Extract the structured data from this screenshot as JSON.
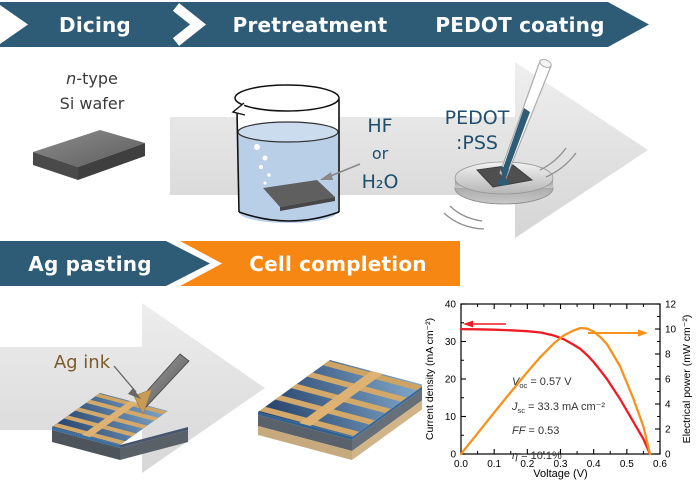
{
  "flow_row1": {
    "steps": [
      {
        "label": "Dicing"
      },
      {
        "label": "Pretreatment"
      },
      {
        "label": "PEDOT coating"
      }
    ]
  },
  "flow_row2": {
    "steps": [
      {
        "label": "Ag pasting"
      },
      {
        "label": "Cell completion"
      }
    ]
  },
  "labels": {
    "wafer_italic": "n",
    "wafer_rest": "-type",
    "wafer_line2": "Si wafer",
    "etch_line1": "HF",
    "etch_line2": "or",
    "etch_line3": "H₂O",
    "pedot_line1": "PEDOT",
    "pedot_line2": ":PSS",
    "ag_ink": "Ag ink"
  },
  "colors": {
    "teal_banner": "#2E5C77",
    "orange_banner": "#F68712",
    "flow_arrow_gray": "#E4E4E4",
    "beaker_liquid": "#B9CEE7",
    "label_blue": "#1F4E6E",
    "ag_ink_brown": "#7B5B2B",
    "curve_red": "#EE1C25",
    "curve_orange": "#F6921E"
  },
  "chart_data": {
    "type": "line",
    "xlabel": "Voltage (V)",
    "ylabel_left": "Current density (mA cm⁻²)",
    "ylabel_right": "Electrical power (mW cm⁻²)",
    "xlim": [
      0.0,
      0.6
    ],
    "ylim_left": [
      0,
      40
    ],
    "ylim_right": [
      0,
      12
    ],
    "xticks": [
      0.0,
      0.1,
      0.2,
      0.3,
      0.4,
      0.5,
      0.6
    ],
    "xtick_labels": [
      "0.0",
      "0.1",
      "0.2",
      "0.3",
      "0.4",
      "0.5",
      "0.6"
    ],
    "yticks_left": [
      0,
      10,
      20,
      30,
      40
    ],
    "ytick_labels_left": [
      "0",
      "10",
      "20",
      "30",
      "40"
    ],
    "yticks_right": [
      0,
      2,
      4,
      6,
      8,
      10,
      12
    ],
    "ytick_labels_right": [
      "0",
      "2",
      "4",
      "6",
      "8",
      "10",
      "12"
    ],
    "grid": false,
    "series": [
      {
        "name": "Current density",
        "axis": "left",
        "color": "#EE1C25",
        "points": [
          [
            0,
            33.3
          ],
          [
            0.05,
            33.25
          ],
          [
            0.1,
            33.15
          ],
          [
            0.15,
            33.0
          ],
          [
            0.2,
            32.75
          ],
          [
            0.24,
            32.4
          ],
          [
            0.28,
            31.6
          ],
          [
            0.31,
            30.6
          ],
          [
            0.34,
            29.1
          ],
          [
            0.36,
            28.0
          ],
          [
            0.38,
            26.4
          ],
          [
            0.4,
            24.5
          ],
          [
            0.42,
            22.3
          ],
          [
            0.44,
            20.0
          ],
          [
            0.48,
            14.6
          ],
          [
            0.52,
            8.5
          ],
          [
            0.55,
            4.0
          ],
          [
            0.57,
            0
          ]
        ]
      },
      {
        "name": "Electrical power",
        "axis": "right",
        "color": "#F6921E",
        "points": [
          [
            0,
            0
          ],
          [
            0.05,
            1.66
          ],
          [
            0.1,
            3.32
          ],
          [
            0.15,
            4.95
          ],
          [
            0.2,
            6.55
          ],
          [
            0.24,
            7.78
          ],
          [
            0.28,
            8.85
          ],
          [
            0.31,
            9.49
          ],
          [
            0.34,
            9.89
          ],
          [
            0.36,
            10.08
          ],
          [
            0.38,
            10.03
          ],
          [
            0.4,
            9.8
          ],
          [
            0.42,
            9.35
          ],
          [
            0.44,
            8.8
          ],
          [
            0.48,
            7.0
          ],
          [
            0.52,
            4.4
          ],
          [
            0.55,
            2.2
          ],
          [
            0.57,
            0
          ]
        ]
      }
    ],
    "legend_arrows": [
      {
        "series": "Current density",
        "direction": "left",
        "color": "#EE1C25"
      },
      {
        "series": "Electrical power",
        "direction": "right",
        "color": "#F6921E"
      }
    ],
    "annotations": [
      {
        "symbol": "V",
        "sub": "oc",
        "rest": " = 0.57 V"
      },
      {
        "symbol": "J",
        "sub": "sc",
        "rest": " = 33.3 mA cm⁻²"
      },
      {
        "symbol": "FF",
        "sub": "",
        "rest": " = 0.53"
      },
      {
        "symbol": "η",
        "sub": "",
        "rest": " = 10.1%"
      }
    ]
  }
}
